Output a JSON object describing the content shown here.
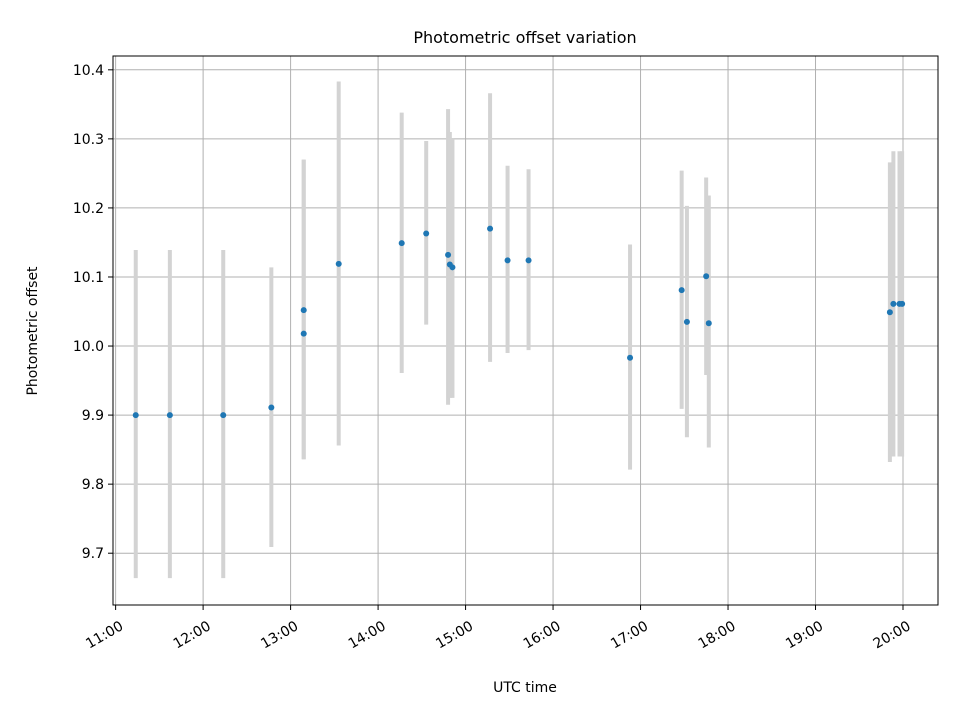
{
  "chart_data": {
    "type": "scatter",
    "title": "Photometric offset variation",
    "xlabel": "UTC time",
    "ylabel": "Photometric offset",
    "x_unit": "hour of day (UTC)",
    "xlim": [
      10.97,
      20.4
    ],
    "ylim": [
      9.625,
      10.42
    ],
    "x_ticks": [
      {
        "value": 11,
        "label": "11:00"
      },
      {
        "value": 12,
        "label": "12:00"
      },
      {
        "value": 13,
        "label": "13:00"
      },
      {
        "value": 14,
        "label": "14:00"
      },
      {
        "value": 15,
        "label": "15:00"
      },
      {
        "value": 16,
        "label": "16:00"
      },
      {
        "value": 17,
        "label": "17:00"
      },
      {
        "value": 18,
        "label": "18:00"
      },
      {
        "value": 19,
        "label": "19:00"
      },
      {
        "value": 20,
        "label": "20:00"
      }
    ],
    "y_ticks": [
      {
        "value": 9.7,
        "label": "9.7"
      },
      {
        "value": 9.8,
        "label": "9.8"
      },
      {
        "value": 9.9,
        "label": "9.9"
      },
      {
        "value": 10.0,
        "label": "10.0"
      },
      {
        "value": 10.1,
        "label": "10.1"
      },
      {
        "value": 10.2,
        "label": "10.2"
      },
      {
        "value": 10.3,
        "label": "10.3"
      },
      {
        "value": 10.4,
        "label": "10.4"
      }
    ],
    "grid": true,
    "marker_color": "#1f77b4",
    "errorbar_color": "#d3d3d3",
    "points": [
      {
        "x": 11.23,
        "y": 9.9,
        "ylow": 9.664,
        "yhigh": 10.139
      },
      {
        "x": 11.62,
        "y": 9.9,
        "ylow": 9.664,
        "yhigh": 10.139
      },
      {
        "x": 12.23,
        "y": 9.9,
        "ylow": 9.664,
        "yhigh": 10.139
      },
      {
        "x": 12.78,
        "y": 9.911,
        "ylow": 9.709,
        "yhigh": 10.114
      },
      {
        "x": 13.15,
        "y": 10.052,
        "ylow": 9.836,
        "yhigh": 10.27
      },
      {
        "x": 13.15,
        "y": 10.018,
        "ylow": 9.836,
        "yhigh": 10.27
      },
      {
        "x": 13.55,
        "y": 10.119,
        "ylow": 9.856,
        "yhigh": 10.383
      },
      {
        "x": 14.27,
        "y": 10.149,
        "ylow": 9.961,
        "yhigh": 10.338
      },
      {
        "x": 14.55,
        "y": 10.163,
        "ylow": 10.031,
        "yhigh": 10.297
      },
      {
        "x": 14.8,
        "y": 10.132,
        "ylow": 9.915,
        "yhigh": 10.343
      },
      {
        "x": 14.82,
        "y": 10.118,
        "ylow": 9.925,
        "yhigh": 10.31
      },
      {
        "x": 14.85,
        "y": 10.114,
        "ylow": 9.925,
        "yhigh": 10.3
      },
      {
        "x": 15.28,
        "y": 10.17,
        "ylow": 9.977,
        "yhigh": 10.366
      },
      {
        "x": 15.48,
        "y": 10.124,
        "ylow": 9.99,
        "yhigh": 10.261
      },
      {
        "x": 15.72,
        "y": 10.124,
        "ylow": 9.994,
        "yhigh": 10.256
      },
      {
        "x": 16.88,
        "y": 9.983,
        "ylow": 9.821,
        "yhigh": 10.147
      },
      {
        "x": 17.47,
        "y": 10.081,
        "ylow": 9.909,
        "yhigh": 10.254
      },
      {
        "x": 17.53,
        "y": 10.035,
        "ylow": 9.868,
        "yhigh": 10.203
      },
      {
        "x": 17.75,
        "y": 10.101,
        "ylow": 9.958,
        "yhigh": 10.244
      },
      {
        "x": 17.78,
        "y": 10.033,
        "ylow": 9.853,
        "yhigh": 10.218
      },
      {
        "x": 19.85,
        "y": 10.049,
        "ylow": 9.832,
        "yhigh": 10.266
      },
      {
        "x": 19.89,
        "y": 10.061,
        "ylow": 9.84,
        "yhigh": 10.282
      },
      {
        "x": 19.96,
        "y": 10.061,
        "ylow": 9.84,
        "yhigh": 10.282
      },
      {
        "x": 19.99,
        "y": 10.061,
        "ylow": 9.84,
        "yhigh": 10.282
      }
    ]
  }
}
